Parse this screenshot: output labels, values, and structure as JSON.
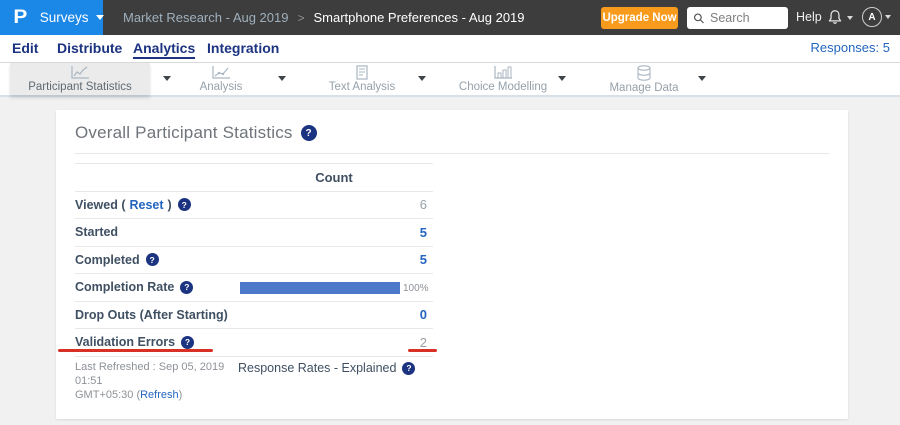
{
  "topbar": {
    "logo_letter": "P",
    "surveys_menu": "Surveys",
    "breadcrumb": {
      "parent": "Market Research - Aug 2019",
      "separator": ">",
      "current": "Smartphone Preferences - Aug 2019"
    },
    "upgrade_button": "Upgrade Now",
    "search": {
      "placeholder": "Search"
    },
    "help_label": "Help",
    "avatar_initial": "A"
  },
  "nav": {
    "items": [
      {
        "label": "Edit",
        "active": false
      },
      {
        "label": "Distribute",
        "active": false
      },
      {
        "label": "Analytics",
        "active": true
      },
      {
        "label": "Integration",
        "active": false
      }
    ],
    "responses": "Responses: 5"
  },
  "toolbar": {
    "tabs": [
      {
        "label": "Participant Statistics",
        "icon": "line-chart-icon",
        "active": true
      },
      {
        "label": "Analysis",
        "icon": "analysis-chart-icon",
        "active": false
      },
      {
        "label": "Text Analysis",
        "icon": "document-icon",
        "active": false
      },
      {
        "label": "Choice Modelling",
        "icon": "bar-chart-icon",
        "active": false
      },
      {
        "label": "Manage Data",
        "icon": "database-icon",
        "active": false
      }
    ]
  },
  "main": {
    "title": "Overall Participant Statistics",
    "table": {
      "count_header": "Count",
      "viewed": {
        "label_prefix": "Viewed (",
        "reset_link": "Reset",
        "label_suffix": ")",
        "value": "6"
      },
      "started": {
        "label": "Started",
        "value": "5"
      },
      "completed": {
        "label": "Completed",
        "value": "5"
      },
      "completion_rate": {
        "label": "Completion Rate",
        "percent": 100,
        "percent_label": "100%"
      },
      "drop_outs": {
        "label": "Drop Outs (After Starting)",
        "value": "0"
      },
      "validation_errors": {
        "label": "Validation Errors",
        "value": "2"
      }
    },
    "footer": {
      "last_refreshed_line1": "Last Refreshed : Sep 05, 2019 01:51",
      "last_refreshed_line2_prefix": "GMT+05:30 (",
      "refresh_link": "Refresh",
      "last_refreshed_line2_suffix": ")",
      "response_rates": "Response Rates - Explained"
    }
  },
  "icons": {
    "help_glyph": "?"
  },
  "colors": {
    "brand_blue": "#1b87e6",
    "navy": "#1b3380",
    "orange": "#f89b1c",
    "link_blue": "#2465c0",
    "bar_blue": "#4d79ca",
    "annotation_red": "#d93025",
    "topbar_dark": "#3d3d3d"
  }
}
